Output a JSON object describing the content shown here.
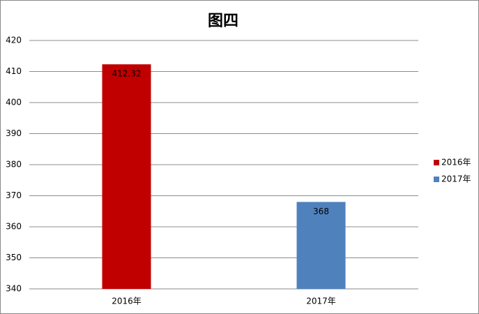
{
  "chart_data": {
    "type": "bar",
    "title": "图四",
    "categories": [
      "2016年",
      "2017年"
    ],
    "values": [
      412.32,
      368
    ],
    "colors": [
      "#c00000",
      "#4f81bd"
    ],
    "ylim": [
      340,
      420
    ],
    "yticks": [
      340,
      350,
      360,
      370,
      380,
      390,
      400,
      410,
      420
    ],
    "grid": true,
    "legend": "right"
  }
}
